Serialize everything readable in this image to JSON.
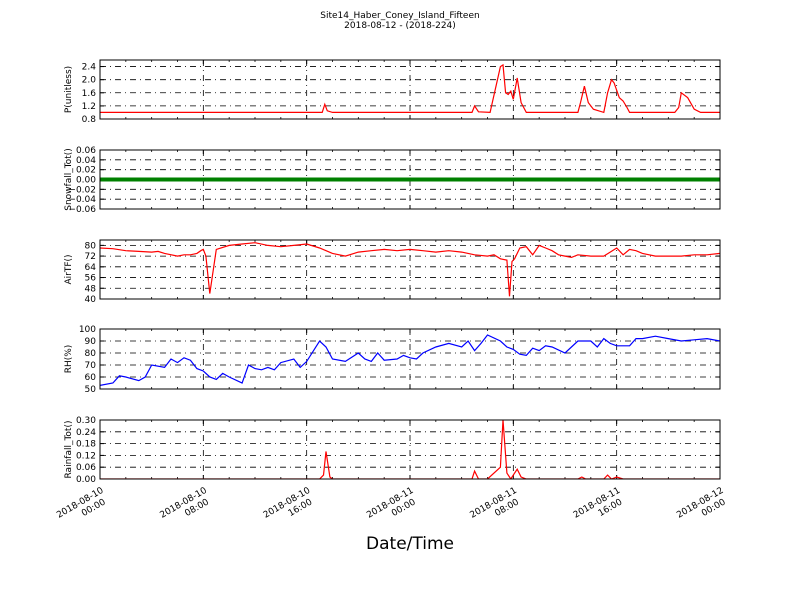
{
  "header": {
    "title": "Site14_Haber_Coney_Island_Fifteen",
    "subtitle": "2018-08-12 - (2018-224)"
  },
  "x_axis": {
    "label": "Date/Time",
    "ticks": [
      {
        "hours": 0,
        "l1": "2018-08-10",
        "l2": "00:00"
      },
      {
        "hours": 8,
        "l1": "2018-08-10",
        "l2": "08:00"
      },
      {
        "hours": 16,
        "l1": "2018-08-10",
        "l2": "16:00"
      },
      {
        "hours": 24,
        "l1": "2018-08-11",
        "l2": "00:00"
      },
      {
        "hours": 32,
        "l1": "2018-08-11",
        "l2": "08:00"
      },
      {
        "hours": 40,
        "l1": "2018-08-11",
        "l2": "16:00"
      },
      {
        "hours": 48,
        "l1": "2018-08-12",
        "l2": "00:00"
      }
    ]
  },
  "chart_data": [
    {
      "type": "line",
      "ylabel": "P(unitless)",
      "ylim": [
        0.8,
        2.6
      ],
      "yticks": [
        "0.8",
        "1.2",
        "1.6",
        "2.0",
        "2.4"
      ],
      "ytick_values": [
        0.8,
        1.2,
        1.6,
        2.0,
        2.4
      ],
      "grid": true,
      "color": "#ff0000",
      "series": [
        {
          "x": [
            0,
            17.2,
            17.4,
            17.6,
            18,
            28.8,
            29,
            29.3,
            30.2,
            31,
            31.2,
            31.4,
            31.6,
            31.8,
            32,
            32.3,
            32.6,
            33,
            33.5,
            35.5,
            37,
            37.2,
            37.5,
            37.8,
            38.2,
            39,
            39.3,
            39.6,
            39.8,
            40.2,
            40.5,
            40.8,
            41,
            42,
            44.5,
            44.8,
            45,
            45.5,
            46,
            46.5,
            48
          ],
          "y": [
            1.0,
            1.0,
            1.25,
            1.05,
            1.0,
            1.0,
            1.2,
            1.02,
            1.0,
            2.4,
            2.45,
            1.6,
            1.55,
            1.65,
            1.4,
            2.05,
            1.3,
            1.0,
            1.0,
            1.0,
            1.0,
            1.3,
            1.8,
            1.3,
            1.1,
            1.0,
            1.6,
            2.0,
            1.9,
            1.45,
            1.35,
            1.15,
            1.0,
            1.0,
            1.0,
            1.15,
            1.6,
            1.45,
            1.1,
            1.0,
            1.0
          ]
        }
      ]
    },
    {
      "type": "line",
      "ylabel": "Snowfall_Tot()",
      "ylim": [
        -0.06,
        0.06
      ],
      "yticks": [
        "−0.06",
        "−0.04",
        "−0.02",
        "0.00",
        "0.02",
        "0.04",
        "0.06"
      ],
      "ytick_values": [
        -0.06,
        -0.04,
        -0.02,
        0.0,
        0.02,
        0.04,
        0.06
      ],
      "grid": true,
      "color": "#008000",
      "series": [
        {
          "x": [
            0,
            48
          ],
          "y": [
            0,
            0
          ]
        }
      ]
    },
    {
      "type": "line",
      "ylabel": "AirTF()",
      "ylim": [
        40,
        84
      ],
      "yticks": [
        "40",
        "48",
        "56",
        "64",
        "72",
        "80"
      ],
      "ytick_values": [
        40,
        48,
        56,
        64,
        72,
        80
      ],
      "grid": true,
      "color": "#ff0000",
      "series": [
        {
          "x": [
            0,
            1,
            2,
            3,
            4,
            4.5,
            5,
            6,
            6.5,
            7,
            7.5,
            7.8,
            8,
            8.2,
            8.5,
            9,
            10,
            11,
            12,
            13,
            14,
            15,
            16,
            17,
            18,
            19,
            20,
            21,
            22,
            23,
            24,
            25,
            26,
            27,
            28,
            29,
            30,
            30.5,
            31,
            31.5,
            31.7,
            31.9,
            32.1,
            32.5,
            33,
            33.5,
            34,
            34.5,
            35,
            35.5,
            36,
            36.5,
            37,
            38,
            39,
            39.5,
            40,
            40.5,
            41,
            41.5,
            42,
            43,
            44,
            45,
            46,
            47,
            48
          ],
          "y": [
            78,
            77.5,
            76,
            75.5,
            75,
            75.5,
            74,
            72,
            73,
            73,
            74,
            76,
            77,
            72,
            44,
            77,
            80,
            81,
            82,
            80,
            79,
            80,
            81,
            78,
            74,
            72,
            75,
            76,
            77,
            76,
            77,
            76,
            75,
            76,
            75,
            73,
            72,
            73,
            70,
            69,
            42,
            68,
            70,
            78,
            79,
            73,
            80,
            78,
            76,
            73,
            72,
            71,
            73,
            72,
            72,
            75,
            78,
            73,
            77,
            76,
            74,
            72,
            72,
            72,
            73,
            73,
            74
          ]
        }
      ]
    },
    {
      "type": "line",
      "ylabel": "RH(%)",
      "ylim": [
        50,
        100
      ],
      "yticks": [
        "50",
        "60",
        "70",
        "80",
        "90",
        "100"
      ],
      "ytick_values": [
        50,
        60,
        70,
        80,
        90,
        100
      ],
      "grid": true,
      "color": "#0000ff",
      "series": [
        {
          "x": [
            0,
            1,
            1.5,
            2,
            3,
            3.5,
            4,
            5,
            5.5,
            6,
            6.5,
            7,
            7.5,
            8,
            8.5,
            9,
            9.5,
            10,
            11,
            11.5,
            12,
            12.5,
            13,
            13.5,
            14,
            15,
            15.5,
            16,
            17,
            17.5,
            18,
            19,
            20,
            20.5,
            21,
            21.5,
            22,
            23,
            23.5,
            24,
            24.5,
            25,
            26,
            27,
            28,
            28.5,
            29,
            29.5,
            30,
            31,
            31.5,
            32,
            32.5,
            33,
            33.5,
            34,
            34.5,
            35,
            36,
            37,
            38,
            38.5,
            39,
            39.5,
            40,
            41,
            41.5,
            42,
            43,
            44,
            45,
            46,
            47,
            48
          ],
          "y": [
            53,
            55,
            61,
            60,
            57,
            60,
            70,
            68,
            75,
            72,
            76,
            74,
            67,
            65,
            60,
            58,
            63,
            60,
            55,
            70,
            67,
            66,
            68,
            66,
            72,
            75,
            68,
            73,
            90,
            85,
            75,
            73,
            80,
            75,
            73,
            80,
            74,
            75,
            78,
            76,
            75,
            80,
            85,
            88,
            85,
            90,
            82,
            88,
            95,
            90,
            85,
            83,
            79,
            78,
            84,
            82,
            86,
            85,
            80,
            90,
            90,
            85,
            92,
            88,
            86,
            86,
            92,
            92,
            94,
            92,
            90,
            91,
            92,
            90
          ]
        }
      ]
    },
    {
      "type": "line",
      "ylabel": "Rainfall_Tot()",
      "ylim": [
        0.0,
        0.3
      ],
      "yticks": [
        "0.00",
        "0.06",
        "0.12",
        "0.18",
        "0.24",
        "0.30"
      ],
      "ytick_values": [
        0.0,
        0.06,
        0.12,
        0.18,
        0.24,
        0.3
      ],
      "grid": true,
      "color": "#ff0000",
      "series": [
        {
          "x": [
            0,
            17,
            17.3,
            17.5,
            17.8,
            18,
            28.8,
            29,
            29.3,
            30,
            31,
            31.2,
            31.5,
            31.8,
            32,
            32.3,
            32.6,
            33,
            33.5,
            37,
            37.3,
            37.6,
            39,
            39.3,
            39.6,
            40,
            40.5,
            48
          ],
          "y": [
            0,
            0,
            0.02,
            0.14,
            0.01,
            0,
            0,
            0.04,
            0,
            0,
            0.06,
            0.3,
            0.03,
            0,
            0.02,
            0.05,
            0.01,
            0,
            0,
            0,
            0.01,
            0,
            0,
            0.02,
            0,
            0.01,
            0,
            0
          ]
        }
      ]
    }
  ]
}
